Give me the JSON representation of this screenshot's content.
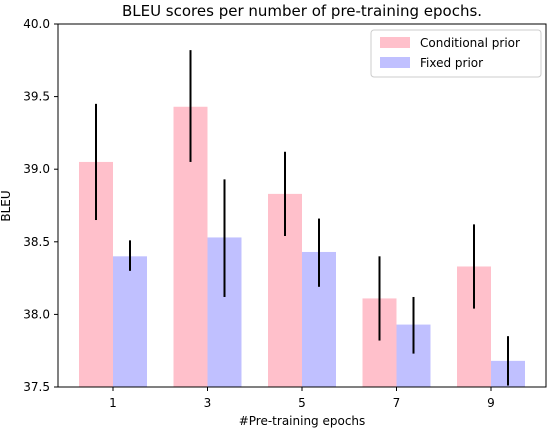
{
  "chart_data": {
    "type": "bar",
    "title": "BLEU scores per number of pre-training epochs.",
    "xlabel": "#Pre-training epochs",
    "ylabel": "BLEU",
    "categories": [
      "1",
      "3",
      "5",
      "7",
      "9"
    ],
    "ylim": [
      37.5,
      40.0
    ],
    "yticks": [
      "37.5",
      "38.0",
      "38.5",
      "39.0",
      "39.5",
      "40.0"
    ],
    "grid": false,
    "legend_position": "top-right",
    "series": [
      {
        "name": "Conditional prior",
        "color": "#ffc0cb",
        "values": [
          39.05,
          39.43,
          38.83,
          38.11,
          38.33
        ],
        "err_low": [
          38.65,
          39.05,
          38.54,
          37.82,
          38.04
        ],
        "err_high": [
          39.45,
          39.82,
          39.12,
          38.4,
          38.62
        ]
      },
      {
        "name": "Fixed prior",
        "color": "#c0c0ff",
        "values": [
          38.4,
          38.53,
          38.43,
          37.93,
          37.68
        ],
        "err_low": [
          38.3,
          38.12,
          38.19,
          37.73,
          37.51
        ],
        "err_high": [
          38.51,
          38.93,
          38.66,
          38.12,
          37.85
        ]
      }
    ]
  }
}
